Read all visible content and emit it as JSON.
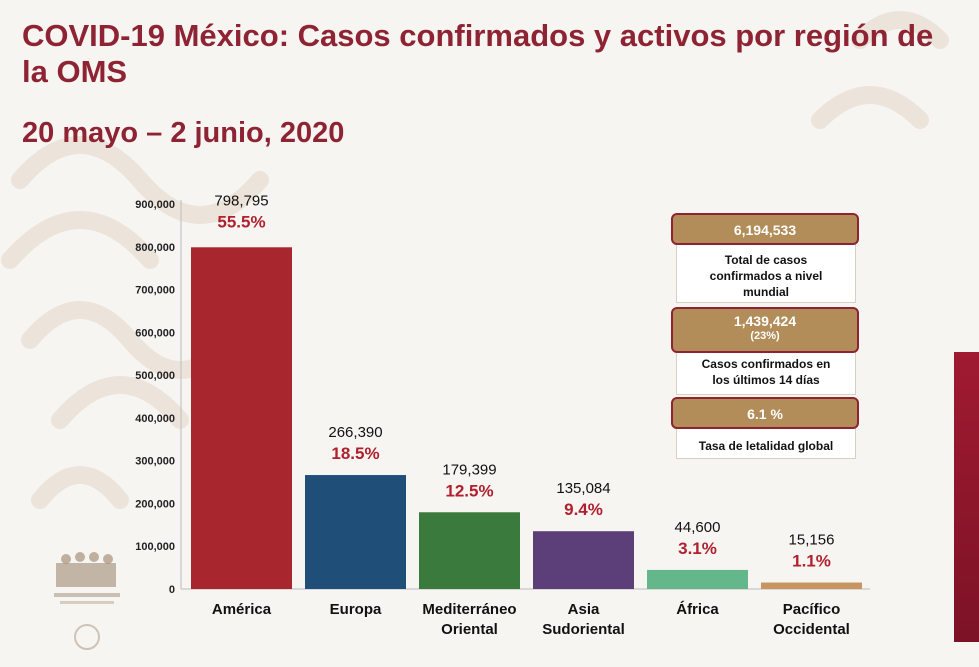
{
  "title": "COVID-19 México: Casos confirmados y activos por región de la OMS",
  "subtitle": "20 mayo – 2 junio, 2020",
  "colors": {
    "title": "#8e2433",
    "pct": "#b0202e",
    "pill": "#b28d59",
    "bars": [
      "#a8262e",
      "#1f4e79",
      "#3b7a3d",
      "#5c3f79",
      "#63b78b",
      "#c79560"
    ]
  },
  "chart_data": {
    "type": "bar",
    "categories": [
      [
        "América"
      ],
      [
        "Europa"
      ],
      [
        "Mediterráneo",
        "Oriental"
      ],
      [
        "Asia",
        "Sudoriental"
      ],
      [
        "África"
      ],
      [
        "Pacífico",
        "Occidental"
      ]
    ],
    "values": [
      798795,
      266390,
      179399,
      135084,
      44600,
      15156
    ],
    "value_labels": [
      "798,795",
      "266,390",
      "179,399",
      "135,084",
      "44,600",
      "15,156"
    ],
    "percent_labels": [
      "55.5%",
      "18.5%",
      "12.5%",
      "9.4%",
      "3.1%",
      "1.1%"
    ],
    "y_ticks": [
      "0",
      "100,000",
      "200,000",
      "300,000",
      "400,000",
      "500,000",
      "600,000",
      "700,000",
      "800,000",
      "900,000"
    ],
    "ylim": [
      0,
      900000
    ],
    "grid": false
  },
  "summary": {
    "total": {
      "value": "6,194,533",
      "caption": [
        "Total de casos",
        "confirmados a nivel",
        "mundial"
      ]
    },
    "recent": {
      "value": "1,439,424",
      "pct": "(23%)",
      "caption": [
        "Casos confirmados en",
        "los últimos 14 días"
      ]
    },
    "lethality": {
      "value": "6.1 %",
      "caption": [
        "Tasa de letalidad global"
      ]
    }
  }
}
